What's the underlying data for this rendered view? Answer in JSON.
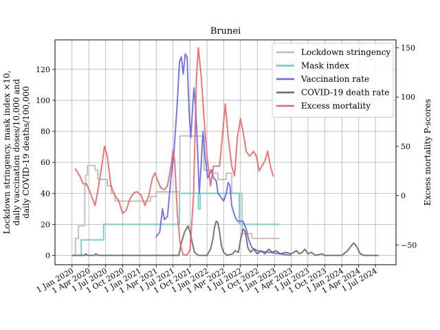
{
  "chart_data": {
    "type": "line",
    "title": "Brunei",
    "ylabel_lines": [
      "Lockdown stringency, mask index ×10,",
      "daily vaccination doses/10,000 and",
      "daily COVID-19 deaths/100,000"
    ],
    "ylabel_right": "Excess mortality P-scores",
    "ylim": [
      -6,
      139
    ],
    "ylim_right": [
      -70,
      158
    ],
    "yticks": [
      0,
      20,
      40,
      60,
      80,
      100,
      120
    ],
    "yticks_right": [
      -50,
      0,
      50,
      100,
      150
    ],
    "yticks_right_labels": [
      "−50",
      "0",
      "50",
      "100",
      "150"
    ],
    "xlim": [
      "2019-10-01",
      "2024-10-20"
    ],
    "xticks": [
      {
        "date": "2020-01-01",
        "label": "1 Jan 2020"
      },
      {
        "date": "2020-04-01",
        "label": "1 Apr 2020"
      },
      {
        "date": "2020-07-01",
        "label": "1 Jul 2020"
      },
      {
        "date": "2020-10-01",
        "label": "1 Oct 2020"
      },
      {
        "date": "2021-01-01",
        "label": "1 Jan 2021"
      },
      {
        "date": "2021-04-01",
        "label": "1 Apr 2021"
      },
      {
        "date": "2021-07-01",
        "label": "1 Jul 2021"
      },
      {
        "date": "2021-10-01",
        "label": "1 Oct 2021"
      },
      {
        "date": "2022-01-01",
        "label": "1 Jan 2022"
      },
      {
        "date": "2022-04-01",
        "label": "1 Apr 2022"
      },
      {
        "date": "2022-07-01",
        "label": "1 Jul 2022"
      },
      {
        "date": "2022-10-01",
        "label": "1 Oct 2022"
      },
      {
        "date": "2023-01-01",
        "label": "1 Jan 2023"
      },
      {
        "date": "2023-04-01",
        "label": "1 Apr 2023"
      },
      {
        "date": "2023-07-01",
        "label": "1 Jul 2023"
      },
      {
        "date": "2023-10-01",
        "label": "1 Oct 2023"
      },
      {
        "date": "2024-01-01",
        "label": "1 Jan 2024"
      },
      {
        "date": "2024-04-01",
        "label": "1 Apr 2024"
      },
      {
        "date": "2024-07-01",
        "label": "1 Jul 2024"
      }
    ],
    "grid": true,
    "legend_position": "top-right",
    "series": [
      {
        "name": "Lockdown stringency",
        "color": "#bbbbbb",
        "axis": "left",
        "step": true,
        "points": [
          [
            "2020-01-03",
            0
          ],
          [
            "2020-01-20",
            11
          ],
          [
            "2020-02-05",
            19
          ],
          [
            "2020-03-10",
            45
          ],
          [
            "2020-03-15",
            52
          ],
          [
            "2020-03-25",
            58
          ],
          [
            "2020-05-05",
            55
          ],
          [
            "2020-05-20",
            49
          ],
          [
            "2020-07-10",
            45
          ],
          [
            "2020-08-01",
            40
          ],
          [
            "2020-08-20",
            35
          ],
          [
            "2021-01-01",
            35
          ],
          [
            "2021-03-01",
            38
          ],
          [
            "2021-04-01",
            41
          ],
          [
            "2021-07-15",
            41
          ],
          [
            "2021-08-07",
            77
          ],
          [
            "2021-12-01",
            77
          ],
          [
            "2021-12-15",
            55
          ],
          [
            "2022-02-01",
            53
          ],
          [
            "2022-03-01",
            49
          ],
          [
            "2022-04-15",
            53
          ],
          [
            "2022-05-15",
            40
          ],
          [
            "2022-07-10",
            14
          ],
          [
            "2022-09-01",
            11
          ],
          [
            "2023-01-25",
            11
          ]
        ]
      },
      {
        "name": "Mask index",
        "color": "#66cccc",
        "axis": "left",
        "step": true,
        "points": [
          [
            "2020-01-03",
            0
          ],
          [
            "2020-02-20",
            10
          ],
          [
            "2020-06-20",
            20
          ],
          [
            "2021-08-05",
            40
          ],
          [
            "2021-11-15",
            30
          ],
          [
            "2021-11-25",
            40
          ],
          [
            "2022-06-25",
            20
          ],
          [
            "2023-01-25",
            20
          ]
        ]
      },
      {
        "name": "Vaccination rate",
        "color": "#6666ee",
        "axis": "left",
        "step": false,
        "points": [
          [
            "2021-04-01",
            12
          ],
          [
            "2021-04-20",
            15
          ],
          [
            "2021-05-05",
            30
          ],
          [
            "2021-05-15",
            23
          ],
          [
            "2021-06-01",
            25
          ],
          [
            "2021-06-20",
            50
          ],
          [
            "2021-07-05",
            65
          ],
          [
            "2021-07-25",
            100
          ],
          [
            "2021-08-05",
            125
          ],
          [
            "2021-08-15",
            128
          ],
          [
            "2021-08-25",
            117
          ],
          [
            "2021-09-05",
            130
          ],
          [
            "2021-09-15",
            128
          ],
          [
            "2021-09-25",
            95
          ],
          [
            "2021-10-05",
            76
          ],
          [
            "2021-10-15",
            95
          ],
          [
            "2021-10-22",
            108
          ],
          [
            "2021-11-01",
            95
          ],
          [
            "2021-11-10",
            70
          ],
          [
            "2021-11-20",
            40
          ],
          [
            "2021-12-01",
            60
          ],
          [
            "2021-12-10",
            80
          ],
          [
            "2021-12-20",
            65
          ],
          [
            "2022-01-05",
            50
          ],
          [
            "2022-01-25",
            55
          ],
          [
            "2022-02-05",
            50
          ],
          [
            "2022-02-20",
            48
          ],
          [
            "2022-03-01",
            40
          ],
          [
            "2022-03-15",
            38
          ],
          [
            "2022-04-01",
            35
          ],
          [
            "2022-04-15",
            40
          ],
          [
            "2022-04-25",
            47
          ],
          [
            "2022-05-05",
            45
          ],
          [
            "2022-05-15",
            32
          ],
          [
            "2022-06-01",
            25
          ],
          [
            "2022-06-15",
            22
          ],
          [
            "2022-07-01",
            22
          ],
          [
            "2022-07-15",
            22
          ],
          [
            "2022-08-01",
            17
          ],
          [
            "2022-08-15",
            10
          ],
          [
            "2022-09-01",
            5
          ],
          [
            "2022-10-01",
            3
          ],
          [
            "2022-12-01",
            2
          ],
          [
            "2023-02-01",
            1
          ],
          [
            "2023-04-01",
            0
          ]
        ]
      },
      {
        "name": "COVID-19 death rate",
        "color": "#666666",
        "axis": "left",
        "step": false,
        "points": [
          [
            "2020-01-03",
            0
          ],
          [
            "2020-03-10",
            0
          ],
          [
            "2020-03-15",
            1
          ],
          [
            "2020-03-25",
            0
          ],
          [
            "2020-05-01",
            0
          ],
          [
            "2020-05-10",
            1
          ],
          [
            "2020-05-20",
            0
          ],
          [
            "2021-07-01",
            0
          ],
          [
            "2021-08-01",
            0
          ],
          [
            "2021-08-15",
            8
          ],
          [
            "2021-09-01",
            15
          ],
          [
            "2021-09-20",
            19
          ],
          [
            "2021-10-01",
            15
          ],
          [
            "2021-10-10",
            10
          ],
          [
            "2021-10-25",
            2
          ],
          [
            "2021-11-15",
            0
          ],
          [
            "2022-01-01",
            0
          ],
          [
            "2022-01-20",
            4
          ],
          [
            "2022-02-01",
            10
          ],
          [
            "2022-02-10",
            18
          ],
          [
            "2022-02-20",
            22
          ],
          [
            "2022-03-01",
            21
          ],
          [
            "2022-03-10",
            15
          ],
          [
            "2022-03-20",
            6
          ],
          [
            "2022-04-01",
            2
          ],
          [
            "2022-04-20",
            0
          ],
          [
            "2022-05-20",
            1
          ],
          [
            "2022-06-01",
            3
          ],
          [
            "2022-06-20",
            2
          ],
          [
            "2022-07-01",
            10
          ],
          [
            "2022-07-15",
            17
          ],
          [
            "2022-07-25",
            16
          ],
          [
            "2022-08-01",
            12
          ],
          [
            "2022-08-10",
            5
          ],
          [
            "2022-08-25",
            2
          ],
          [
            "2022-09-10",
            4
          ],
          [
            "2022-10-01",
            1
          ],
          [
            "2022-10-20",
            3
          ],
          [
            "2022-11-10",
            1
          ],
          [
            "2022-12-01",
            4
          ],
          [
            "2022-12-20",
            2
          ],
          [
            "2023-01-10",
            3
          ],
          [
            "2023-02-01",
            1
          ],
          [
            "2023-03-01",
            2
          ],
          [
            "2023-04-01",
            1
          ],
          [
            "2023-05-01",
            3
          ],
          [
            "2023-05-15",
            1
          ],
          [
            "2023-06-01",
            2
          ],
          [
            "2023-06-15",
            4
          ],
          [
            "2023-07-01",
            1
          ],
          [
            "2023-07-20",
            2
          ],
          [
            "2023-08-10",
            0
          ],
          [
            "2023-09-15",
            1
          ],
          [
            "2023-10-01",
            0
          ],
          [
            "2024-01-01",
            0
          ],
          [
            "2024-02-01",
            3
          ],
          [
            "2024-02-20",
            6
          ],
          [
            "2024-03-05",
            8
          ],
          [
            "2024-03-20",
            6
          ],
          [
            "2024-04-10",
            1
          ],
          [
            "2024-05-01",
            0
          ],
          [
            "2024-07-15",
            0
          ]
        ]
      },
      {
        "name": "Excess mortality",
        "color": "#ee6666",
        "axis": "right",
        "step": false,
        "points": [
          [
            "2020-01-20",
            27
          ],
          [
            "2020-02-15",
            19
          ],
          [
            "2020-03-01",
            12
          ],
          [
            "2020-03-20",
            12
          ],
          [
            "2020-04-15",
            0
          ],
          [
            "2020-05-05",
            -10
          ],
          [
            "2020-05-20",
            5
          ],
          [
            "2020-06-10",
            30
          ],
          [
            "2020-06-25",
            50
          ],
          [
            "2020-07-10",
            40
          ],
          [
            "2020-07-30",
            10
          ],
          [
            "2020-08-20",
            0
          ],
          [
            "2020-09-10",
            -5
          ],
          [
            "2020-10-01",
            -18
          ],
          [
            "2020-10-20",
            -15
          ],
          [
            "2020-11-10",
            -3
          ],
          [
            "2020-12-01",
            3
          ],
          [
            "2020-12-20",
            4
          ],
          [
            "2021-01-10",
            0
          ],
          [
            "2021-01-30",
            -10
          ],
          [
            "2021-02-20",
            0
          ],
          [
            "2021-03-10",
            17
          ],
          [
            "2021-03-25",
            23
          ],
          [
            "2021-04-10",
            15
          ],
          [
            "2021-04-25",
            8
          ],
          [
            "2021-05-15",
            6
          ],
          [
            "2021-06-01",
            10
          ],
          [
            "2021-06-20",
            30
          ],
          [
            "2021-07-01",
            46
          ],
          [
            "2021-07-10",
            35
          ],
          [
            "2021-07-25",
            -20
          ],
          [
            "2021-08-10",
            -50
          ],
          [
            "2021-08-25",
            -60
          ],
          [
            "2021-09-15",
            -60
          ],
          [
            "2021-10-01",
            -55
          ],
          [
            "2021-10-20",
            0
          ],
          [
            "2021-11-05",
            120
          ],
          [
            "2021-11-15",
            150
          ],
          [
            "2021-12-01",
            120
          ],
          [
            "2021-12-15",
            80
          ],
          [
            "2022-01-01",
            40
          ],
          [
            "2022-01-20",
            10
          ],
          [
            "2022-02-05",
            30
          ],
          [
            "2022-02-20",
            30
          ],
          [
            "2022-03-10",
            30
          ],
          [
            "2022-03-25",
            60
          ],
          [
            "2022-04-10",
            93
          ],
          [
            "2022-04-25",
            60
          ],
          [
            "2022-05-15",
            30
          ],
          [
            "2022-05-30",
            20
          ],
          [
            "2022-06-15",
            60
          ],
          [
            "2022-07-01",
            78
          ],
          [
            "2022-07-15",
            65
          ],
          [
            "2022-08-01",
            45
          ],
          [
            "2022-08-20",
            40
          ],
          [
            "2022-09-10",
            45
          ],
          [
            "2022-09-25",
            40
          ],
          [
            "2022-10-10",
            25
          ],
          [
            "2022-10-25",
            30
          ],
          [
            "2022-11-10",
            35
          ],
          [
            "2022-11-25",
            45
          ],
          [
            "2022-12-10",
            30
          ],
          [
            "2022-12-25",
            20
          ]
        ]
      }
    ]
  }
}
